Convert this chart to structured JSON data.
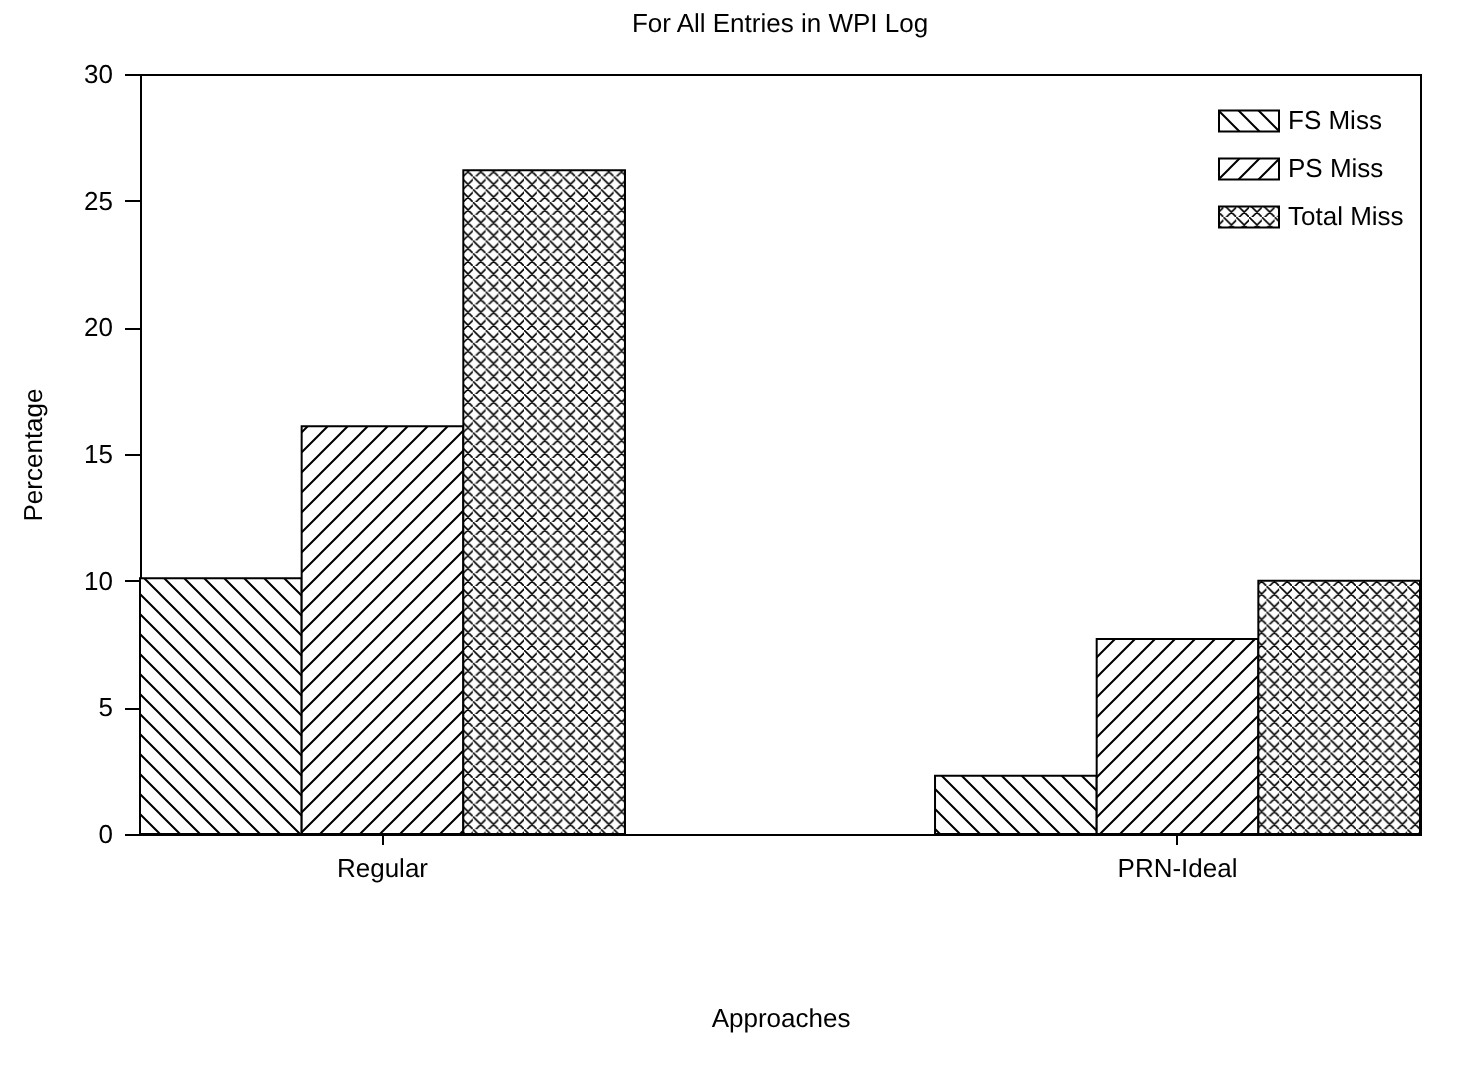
{
  "chart_data": {
    "type": "bar",
    "title": "For All Entries in WPI Log",
    "xlabel": "Approaches",
    "ylabel": "Percentage",
    "categories": [
      "Regular",
      "PRN-Ideal"
    ],
    "series": [
      {
        "name": "FS Miss",
        "color": "#000000",
        "values": [
          10.1,
          2.3
        ]
      },
      {
        "name": "PS Miss",
        "color": "#000000",
        "values": [
          16.1,
          7.7
        ]
      },
      {
        "name": "Total Miss",
        "color": "#000000",
        "values": [
          26.2,
          10.0
        ]
      }
    ],
    "ylim": [
      0,
      30
    ],
    "yticks": [
      0,
      5,
      10,
      15,
      20,
      25,
      30
    ],
    "grid": false,
    "legend": "top right"
  }
}
